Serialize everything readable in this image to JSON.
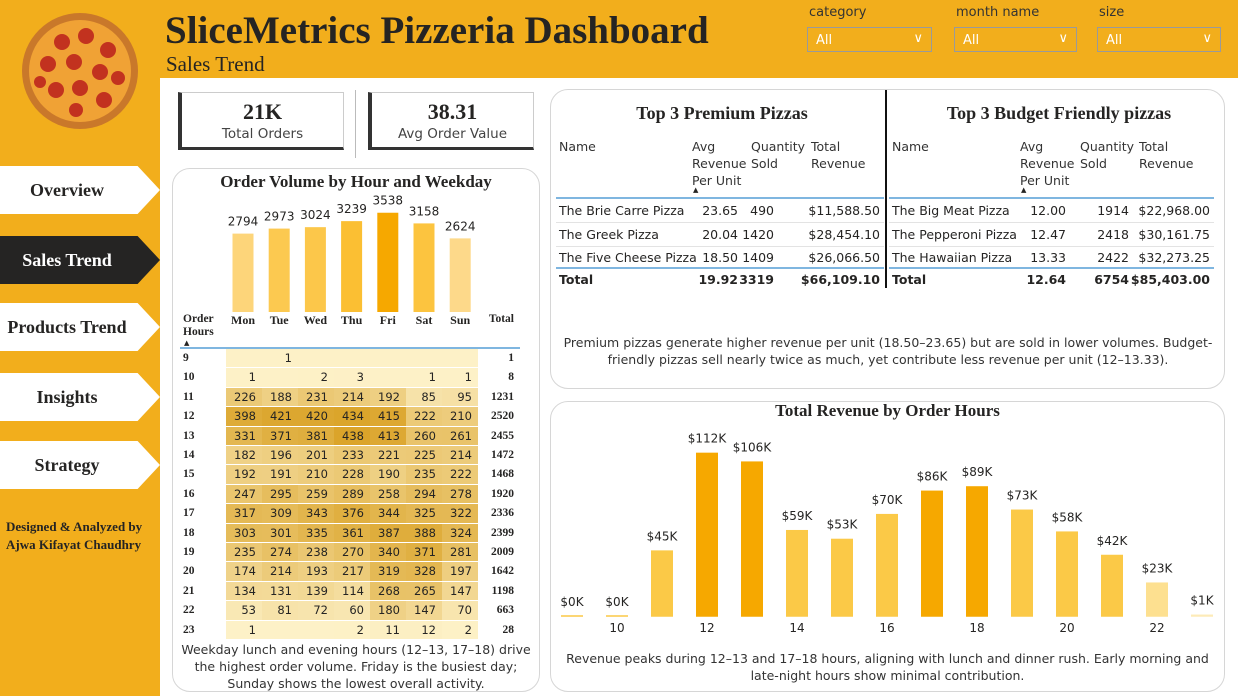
{
  "header": {
    "title": "SliceMetrics Pizzeria Dashboard",
    "subtitle": "Sales Trend"
  },
  "filters": [
    {
      "label": "category",
      "value": "All"
    },
    {
      "label": "month name",
      "value": "All"
    },
    {
      "label": "size",
      "value": "All"
    }
  ],
  "nav": [
    {
      "label": "Overview"
    },
    {
      "label": "Sales Trend",
      "active": true
    },
    {
      "label": "Products Trend"
    },
    {
      "label": "Insights"
    },
    {
      "label": "Strategy"
    }
  ],
  "credit": [
    "Designed & Analyzed by",
    "Ajwa  Kifayat Chaudhry"
  ],
  "kpis": [
    {
      "value": "21K",
      "label": "Total Orders"
    },
    {
      "value": "38.31",
      "label": "Avg Order Value"
    }
  ],
  "heatmap": {
    "row_header": "Order Hours",
    "total_header": "Total",
    "rows": [
      {
        "hour": 9,
        "values": [
          null,
          1,
          null,
          null,
          null,
          null,
          null
        ],
        "total": 1
      },
      {
        "hour": 10,
        "values": [
          1,
          null,
          2,
          3,
          null,
          1,
          1
        ],
        "total": 8
      },
      {
        "hour": 11,
        "values": [
          226,
          188,
          231,
          214,
          192,
          85,
          95
        ],
        "total": 1231
      },
      {
        "hour": 12,
        "values": [
          398,
          421,
          420,
          434,
          415,
          222,
          210
        ],
        "total": 2520
      },
      {
        "hour": 13,
        "values": [
          331,
          371,
          381,
          438,
          413,
          260,
          261
        ],
        "total": 2455
      },
      {
        "hour": 14,
        "values": [
          182,
          196,
          201,
          233,
          221,
          225,
          214
        ],
        "total": 1472
      },
      {
        "hour": 15,
        "values": [
          192,
          191,
          210,
          228,
          190,
          235,
          222
        ],
        "total": 1468
      },
      {
        "hour": 16,
        "values": [
          247,
          295,
          259,
          289,
          258,
          294,
          278
        ],
        "total": 1920
      },
      {
        "hour": 17,
        "values": [
          317,
          309,
          343,
          376,
          344,
          325,
          322
        ],
        "total": 2336
      },
      {
        "hour": 18,
        "values": [
          303,
          301,
          335,
          361,
          387,
          388,
          324
        ],
        "total": 2399
      },
      {
        "hour": 19,
        "values": [
          235,
          274,
          238,
          270,
          340,
          371,
          281
        ],
        "total": 2009
      },
      {
        "hour": 20,
        "values": [
          174,
          214,
          193,
          217,
          319,
          328,
          197
        ],
        "total": 1642
      },
      {
        "hour": 21,
        "values": [
          134,
          131,
          139,
          114,
          268,
          265,
          147
        ],
        "total": 1198
      },
      {
        "hour": 22,
        "values": [
          53,
          81,
          72,
          60,
          180,
          147,
          70
        ],
        "total": 663
      },
      {
        "hour": 23,
        "values": [
          1,
          null,
          null,
          2,
          11,
          12,
          2
        ],
        "total": 28
      }
    ]
  },
  "tables": [
    {
      "title": "Top 3 Premium Pizzas",
      "columns": [
        "Name",
        "Avg Revenue Per Unit",
        "Quantity Sold",
        "Total Revenue"
      ],
      "rows": [
        [
          "The Brie Carre Pizza",
          "23.65",
          "490",
          "$11,588.50"
        ],
        [
          "The Greek Pizza",
          "20.04",
          "1420",
          "$28,454.10"
        ],
        [
          "The Five Cheese Pizza",
          "18.50",
          "1409",
          "$26,066.50"
        ]
      ],
      "total": [
        "Total",
        "19.92",
        "3319",
        "$66,109.10"
      ]
    },
    {
      "title": "Top 3 Budget Friendly pizzas",
      "columns": [
        "Name",
        "Avg Revenue Per Unit",
        "Quantity Sold",
        "Total Revenue"
      ],
      "rows": [
        [
          "The Big Meat Pizza",
          "12.00",
          "1914",
          "$22,968.00"
        ],
        [
          "The Pepperoni Pizza",
          "12.47",
          "2418",
          "$30,161.75"
        ],
        [
          "The Hawaiian Pizza",
          "13.33",
          "2422",
          "$32,273.25"
        ]
      ],
      "total": [
        "Total",
        "12.64",
        "6754",
        "$85,403.00"
      ]
    }
  ],
  "tables_note": "Premium pizzas generate higher revenue per unit (18.50–23.65) but are sold in lower volumes. Budget-friendly pizzas sell nearly twice as much, yet contribute less revenue per unit (12–13.33).",
  "chart_data": [
    {
      "type": "bar",
      "title": "Order Volume by Hour and Weekday",
      "categories": [
        "Mon",
        "Tue",
        "Wed",
        "Thu",
        "Fri",
        "Sat",
        "Sun"
      ],
      "values": [
        2794,
        2973,
        3024,
        3239,
        3538,
        3158,
        2624
      ],
      "colors": [
        "#fdd57a",
        "#fcc950",
        "#fcc74a",
        "#fbbf33",
        "#f6a800",
        "#fcc43f",
        "#fdd98a"
      ],
      "ylim": [
        0,
        3600
      ],
      "note": "Weekday lunch and evening hours (12–13, 17–18) drive the highest order volume. Friday is the busiest day; Sunday shows the lowest overall activity."
    },
    {
      "type": "bar",
      "title": "Total Revenue by Order Hours",
      "categories": [
        null,
        10,
        null,
        12,
        null,
        14,
        null,
        16,
        null,
        18,
        null,
        20,
        null,
        22,
        null
      ],
      "values": [
        0,
        0,
        45000,
        112000,
        106000,
        59000,
        53000,
        70000,
        86000,
        89000,
        73000,
        58000,
        42000,
        23000,
        1000
      ],
      "value_labels": [
        "$0K",
        "$0K",
        "$45K",
        "$112K",
        "$106K",
        "$59K",
        "$53K",
        "$70K",
        "$86K",
        "$89K",
        "$73K",
        "$58K",
        "$42K",
        "$23K",
        "$1K"
      ],
      "colors": [
        "#fbc947",
        "#fbc947",
        "#fbc947",
        "#f6a800",
        "#f6a800",
        "#fbc947",
        "#fbc947",
        "#fbc947",
        "#f6a800",
        "#f6a800",
        "#fbc947",
        "#fbc947",
        "#fbc947",
        "#fde090",
        "#fdebb8"
      ],
      "ylim": [
        0,
        120000
      ],
      "note": "Revenue peaks during 12–13 and 17–18 hours, aligning with lunch and dinner rush. Early morning and late-night hours show minimal contribution."
    }
  ]
}
